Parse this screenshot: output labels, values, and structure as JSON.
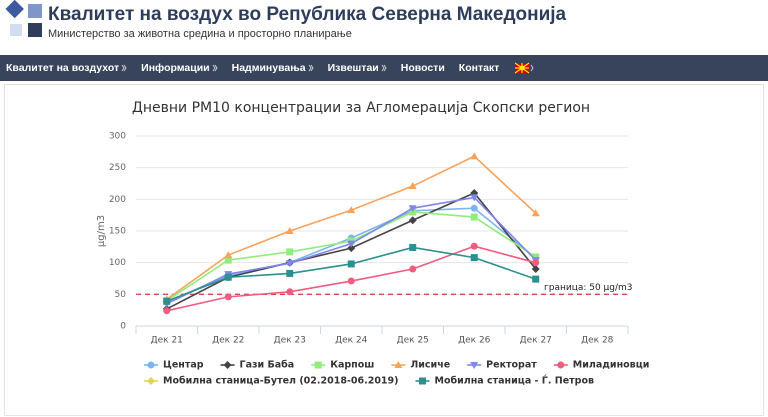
{
  "header": {
    "title": "Квалитет на воздух во Република Северна Македонија",
    "subtitle": "Министерство за животна средина и просторно планирање"
  },
  "nav": {
    "items": [
      "Квалитет на воздухот",
      "Информации",
      "Надминувања",
      "Извештаи",
      "Новости",
      "Контакт"
    ]
  },
  "chart_data": {
    "type": "line",
    "title": "Дневни PM10 концентрации за Агломерација Скопски регион",
    "y_label": "µg/m3",
    "categories": [
      "Дек 21",
      "Дек 22",
      "Дек 23",
      "Дек 24",
      "Дек 25",
      "Дек 26",
      "Дек 27",
      "Дек 28"
    ],
    "ylim": [
      0,
      300
    ],
    "yticks": [
      0,
      50,
      100,
      150,
      200,
      250,
      300
    ],
    "grid": true,
    "threshold": {
      "value": 50,
      "label": "граница: 50 µg/m3",
      "color": "#e0434b"
    },
    "series": [
      {
        "name": "Центар",
        "color": "#7cb5ec",
        "marker": "circle",
        "values": [
          38,
          80,
          100,
          139,
          182,
          186,
          107,
          null
        ]
      },
      {
        "name": "Гази Баба",
        "color": "#434348",
        "marker": "diamond",
        "values": [
          27,
          77,
          100,
          123,
          167,
          210,
          90,
          null
        ]
      },
      {
        "name": "Карпош",
        "color": "#90ed7d",
        "marker": "square",
        "values": [
          40,
          104,
          117,
          134,
          180,
          172,
          109,
          null
        ]
      },
      {
        "name": "Лисиче",
        "color": "#f7a35c",
        "marker": "triangle",
        "values": [
          42,
          112,
          150,
          183,
          221,
          268,
          178,
          null
        ]
      },
      {
        "name": "Ректорат",
        "color": "#8085e9",
        "marker": "triangle-down",
        "values": [
          35,
          82,
          99,
          130,
          186,
          203,
          104,
          null
        ]
      },
      {
        "name": "Миладиновци",
        "color": "#f15c80",
        "marker": "circle",
        "values": [
          24,
          46,
          54,
          71,
          90,
          126,
          100,
          null
        ]
      },
      {
        "name": "Мобилна станица-Бутел (02.2018-06.2019)",
        "color": "#e4d354",
        "marker": "diamond",
        "values": [
          null,
          null,
          null,
          null,
          null,
          null,
          null,
          null
        ]
      },
      {
        "name": "Мобилна станица - Ѓ. Петров",
        "color": "#2b908f",
        "marker": "square",
        "values": [
          39,
          77,
          83,
          98,
          124,
          108,
          74,
          null
        ]
      }
    ]
  }
}
